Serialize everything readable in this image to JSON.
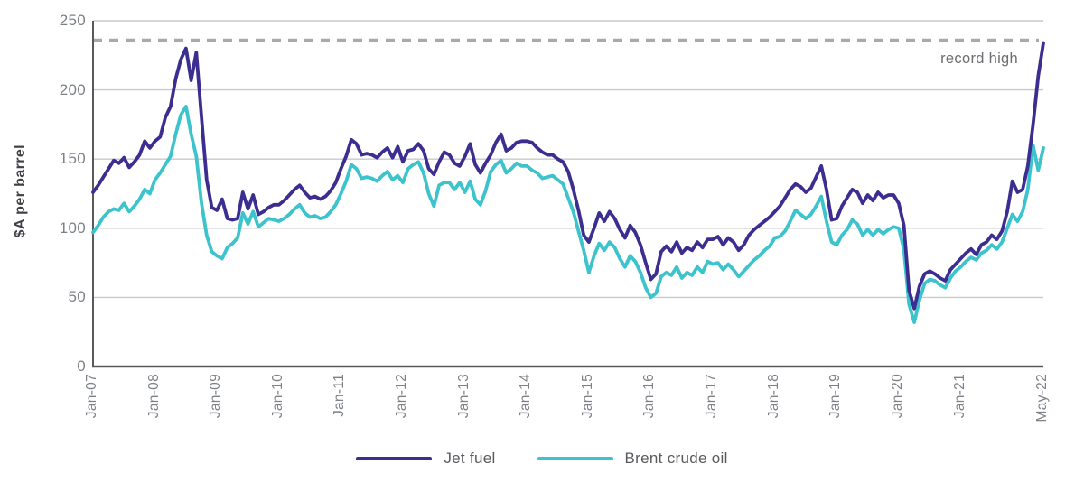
{
  "chart_data": {
    "type": "line",
    "title": "",
    "ylabel": "$A per barrel",
    "xlabel": "",
    "ylim": [
      0,
      250
    ],
    "y_ticks": [
      0,
      50,
      100,
      150,
      200,
      250
    ],
    "grid": "horizontal gridlines at each y tick",
    "legend_position": "bottom-center",
    "x_frequency": "monthly",
    "x_start": "Jan-2007",
    "x_end": "May-2022",
    "x_ticks": [
      {
        "label": "Jan-07",
        "month_index": 0
      },
      {
        "label": "Jan-08",
        "month_index": 12
      },
      {
        "label": "Jan-09",
        "month_index": 24
      },
      {
        "label": "Jan-10",
        "month_index": 36
      },
      {
        "label": "Jan-11",
        "month_index": 48
      },
      {
        "label": "Jan-12",
        "month_index": 60
      },
      {
        "label": "Jan-13",
        "month_index": 72
      },
      {
        "label": "Jan-14",
        "month_index": 84
      },
      {
        "label": "Jan-15",
        "month_index": 96
      },
      {
        "label": "Jan-16",
        "month_index": 108
      },
      {
        "label": "Jan-17",
        "month_index": 120
      },
      {
        "label": "Jan-18",
        "month_index": 132
      },
      {
        "label": "Jan-19",
        "month_index": 144
      },
      {
        "label": "Jan-20",
        "month_index": 156
      },
      {
        "label": "Jan-21",
        "month_index": 168
      },
      {
        "label": "May-22",
        "month_index": 184
      }
    ],
    "series": [
      {
        "name": "Jet fuel",
        "color": "#3b2e90",
        "values": [
          126,
          131,
          137,
          143,
          149,
          147,
          151,
          144,
          148,
          153,
          163,
          158,
          163,
          166,
          180,
          188,
          208,
          222,
          230,
          207,
          227,
          180,
          135,
          115,
          113,
          121,
          107,
          106,
          107,
          126,
          114,
          124,
          110,
          112,
          115,
          117,
          117,
          120,
          124,
          128,
          131,
          126,
          122,
          123,
          121,
          123,
          127,
          133,
          143,
          152,
          164,
          161,
          153,
          154,
          153,
          151,
          155,
          158,
          151,
          159,
          148,
          156,
          157,
          161,
          156,
          143,
          139,
          148,
          155,
          153,
          147,
          145,
          152,
          161,
          146,
          140,
          147,
          153,
          162,
          168,
          156,
          158,
          162,
          163,
          163,
          162,
          158,
          155,
          153,
          153,
          150,
          148,
          141,
          128,
          113,
          95,
          90,
          100,
          111,
          105,
          112,
          107,
          99,
          93,
          102,
          97,
          88,
          75,
          63,
          67,
          83,
          87,
          83,
          90,
          82,
          86,
          84,
          90,
          86,
          92,
          92,
          94,
          88,
          93,
          90,
          84,
          88,
          95,
          99,
          102,
          105,
          108,
          112,
          116,
          122,
          128,
          132,
          130,
          126,
          129,
          137,
          145,
          128,
          106,
          107,
          116,
          122,
          128,
          126,
          118,
          124,
          120,
          126,
          122,
          124,
          124,
          118,
          102,
          55,
          42,
          58,
          67,
          69,
          67,
          64,
          62,
          70,
          74,
          78,
          82,
          85,
          81,
          88,
          90,
          95,
          92,
          98,
          112,
          134,
          126,
          128,
          145,
          175,
          210,
          234
        ]
      },
      {
        "name": "Brent crude oil",
        "color": "#3cc3cc",
        "values": [
          97,
          102,
          108,
          112,
          114,
          113,
          118,
          112,
          116,
          121,
          128,
          125,
          135,
          140,
          146,
          152,
          168,
          182,
          188,
          168,
          152,
          118,
          95,
          83,
          80,
          78,
          86,
          89,
          93,
          111,
          103,
          112,
          101,
          104,
          107,
          106,
          105,
          107,
          110,
          114,
          117,
          111,
          108,
          109,
          107,
          108,
          112,
          117,
          125,
          134,
          146,
          143,
          136,
          137,
          136,
          134,
          138,
          141,
          135,
          138,
          133,
          143,
          146,
          148,
          140,
          125,
          116,
          131,
          133,
          133,
          128,
          133,
          126,
          134,
          121,
          117,
          127,
          141,
          146,
          149,
          140,
          143,
          147,
          145,
          145,
          142,
          140,
          136,
          137,
          138,
          135,
          132,
          122,
          112,
          98,
          84,
          68,
          80,
          89,
          84,
          90,
          86,
          78,
          72,
          80,
          76,
          68,
          57,
          50,
          53,
          65,
          68,
          66,
          72,
          64,
          68,
          66,
          72,
          68,
          76,
          74,
          75,
          70,
          74,
          70,
          65,
          69,
          73,
          77,
          80,
          84,
          87,
          93,
          94,
          98,
          105,
          113,
          110,
          107,
          110,
          116,
          123,
          105,
          90,
          88,
          95,
          99,
          106,
          103,
          95,
          99,
          95,
          99,
          96,
          99,
          101,
          100,
          85,
          45,
          32,
          48,
          60,
          63,
          62,
          59,
          57,
          64,
          69,
          72,
          76,
          79,
          77,
          82,
          84,
          88,
          85,
          90,
          100,
          110,
          105,
          112,
          128,
          160,
          142,
          158
        ]
      }
    ],
    "annotations": [
      {
        "text": "record high",
        "type": "horizontal-dashed-line",
        "value": 236
      }
    ]
  },
  "colors": {
    "background": "#ffffff",
    "jet_fuel_line": "#3b2e90",
    "brent_line": "#3cc3cc",
    "gridline": "#c8c9cb",
    "axis_line": "#58595b",
    "dashed_record_line": "#a7a9ac",
    "tick_text": "#7d8086",
    "record_high_text": "#6d6e71",
    "legend_text": "#595a5d",
    "axis_title_text": "#404045"
  }
}
